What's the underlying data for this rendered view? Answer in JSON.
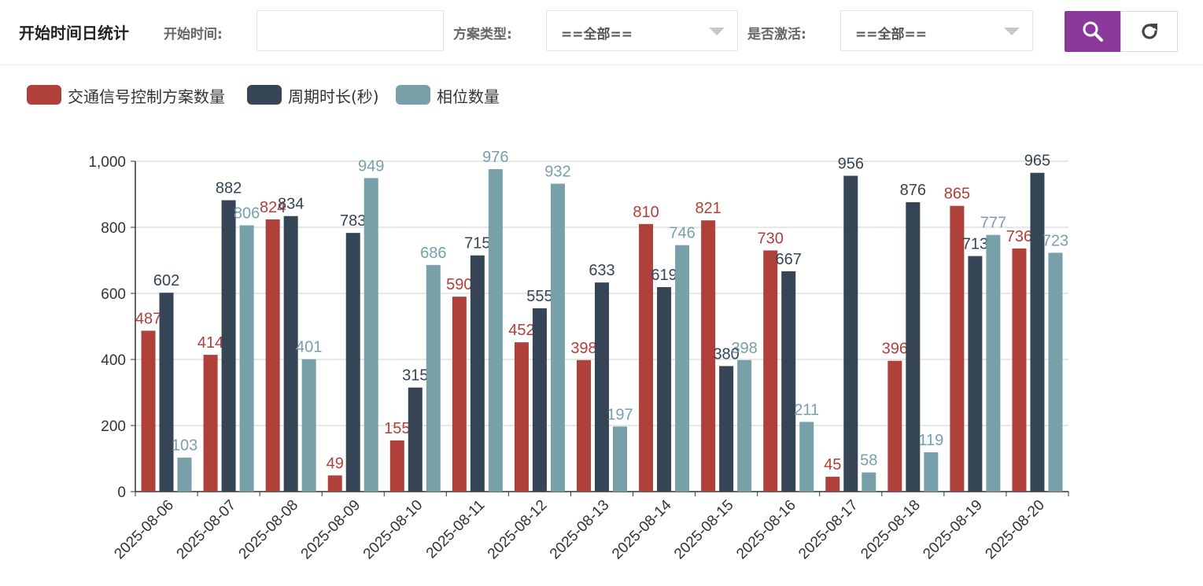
{
  "toolbar": {
    "title": "开始时间日统计",
    "start_time_label": "开始时间:",
    "start_time_value": "",
    "plan_type_label": "方案类型:",
    "plan_type_value": "==全部==",
    "active_label": "是否激活:",
    "active_value": "==全部==",
    "search_icon": "search-icon",
    "refresh_icon": "refresh-icon",
    "accent_color": "#8b3a9b"
  },
  "chart_data": {
    "type": "bar",
    "categories": [
      "2025-08-06",
      "2025-08-07",
      "2025-08-08",
      "2025-08-09",
      "2025-08-10",
      "2025-08-11",
      "2025-08-12",
      "2025-08-13",
      "2025-08-14",
      "2025-08-15",
      "2025-08-16",
      "2025-08-17",
      "2025-08-18",
      "2025-08-19",
      "2025-08-20"
    ],
    "series": [
      {
        "name": "交通信号控制方案数量",
        "color": "#b0403a",
        "values": [
          487,
          414,
          824,
          49,
          155,
          590,
          452,
          398,
          810,
          821,
          730,
          45,
          396,
          865,
          736
        ]
      },
      {
        "name": "周期时长(秒)",
        "color": "#354555",
        "values": [
          602,
          882,
          834,
          783,
          315,
          715,
          555,
          633,
          619,
          380,
          667,
          956,
          876,
          713,
          965
        ]
      },
      {
        "name": "相位数量",
        "color": "#77a0a8",
        "values": [
          103,
          806,
          401,
          949,
          686,
          976,
          932,
          197,
          746,
          398,
          211,
          58,
          119,
          777,
          723
        ]
      }
    ],
    "yticks": [
      "0",
      "200",
      "400",
      "600",
      "800",
      "1,000"
    ],
    "ylim": [
      0,
      1000
    ],
    "grid": true,
    "legend_position": "top-left",
    "data_labels": true
  }
}
